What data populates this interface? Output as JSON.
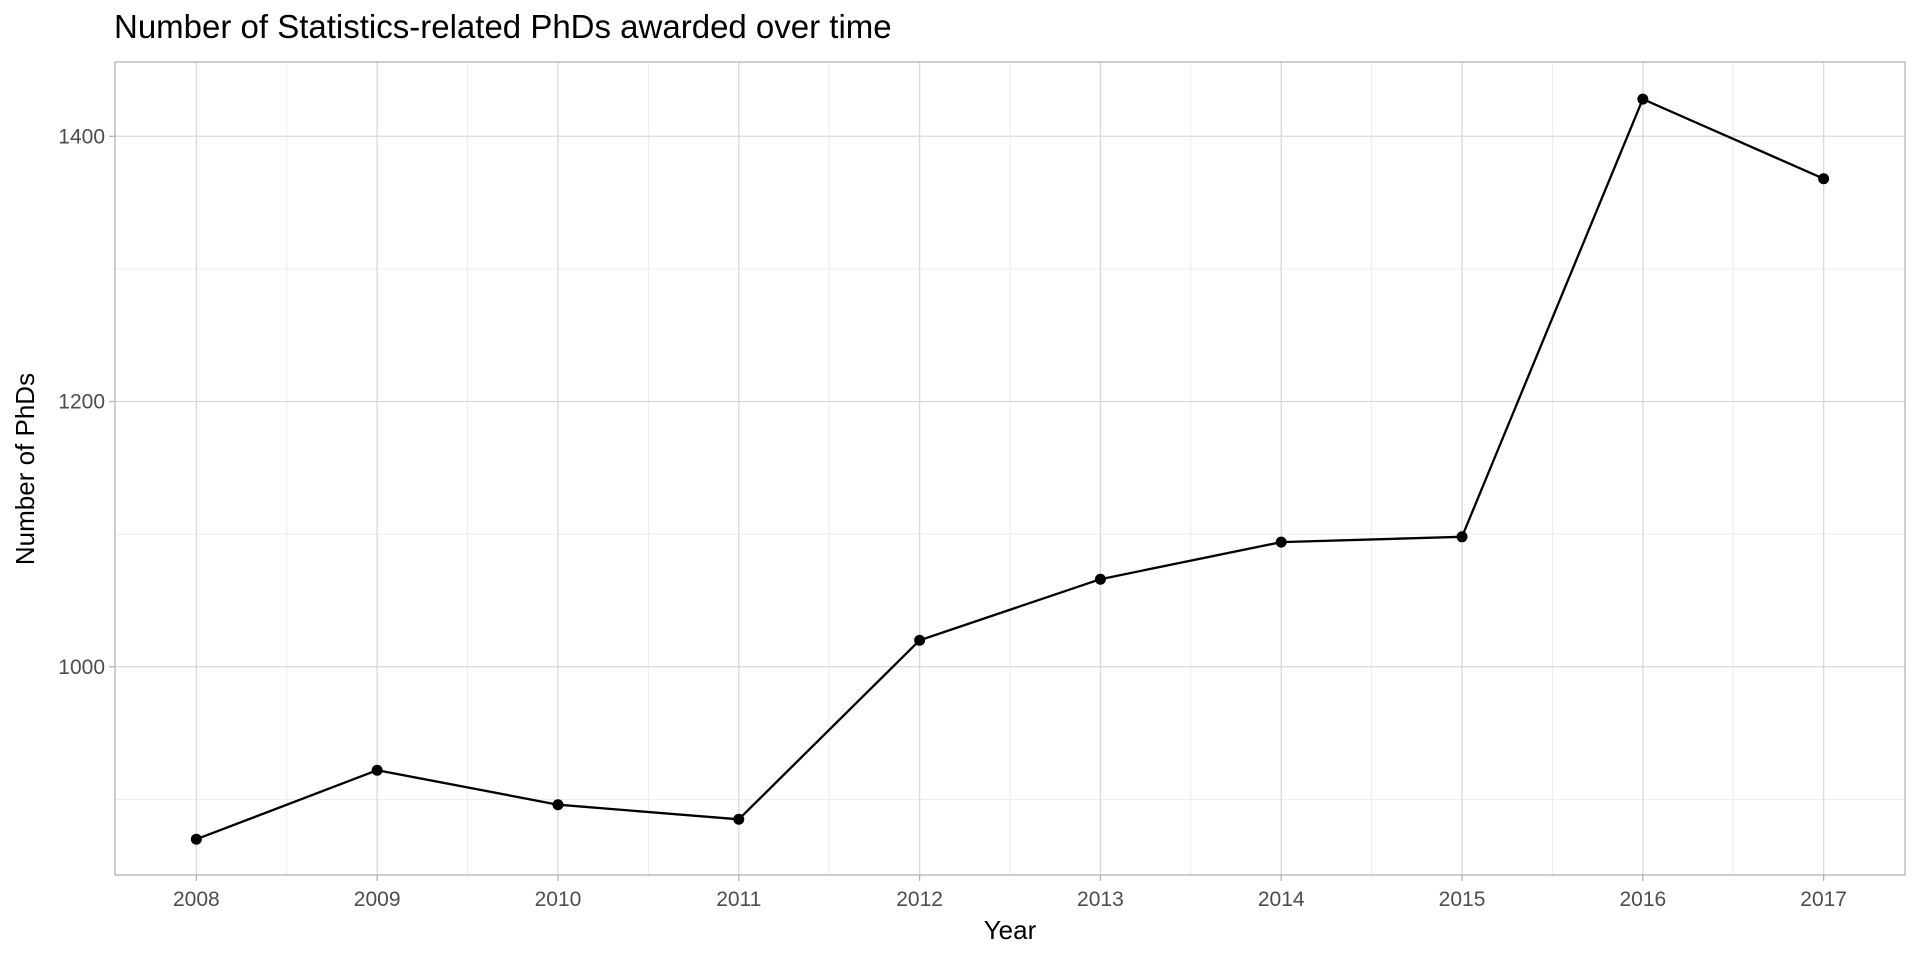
{
  "chart_data": {
    "type": "line",
    "title": "Number of Statistics-related PhDs awarded over time",
    "xlabel": "Year",
    "ylabel": "Number of PhDs",
    "x": [
      2008,
      2009,
      2010,
      2011,
      2012,
      2013,
      2014,
      2015,
      2016,
      2017
    ],
    "series": [
      {
        "values": [
          870,
          922,
          896,
          885,
          1020,
          1066,
          1094,
          1098,
          1428,
          1368
        ],
        "color": "#000000",
        "markers": true
      }
    ],
    "xticks": [
      2008,
      2009,
      2010,
      2011,
      2012,
      2013,
      2014,
      2015,
      2016,
      2017
    ],
    "yticks": [
      1000,
      1200,
      1400
    ],
    "xlim": [
      2007.55,
      2017.45
    ],
    "ylim": [
      843,
      1456
    ],
    "grid": true,
    "legend": "none"
  }
}
